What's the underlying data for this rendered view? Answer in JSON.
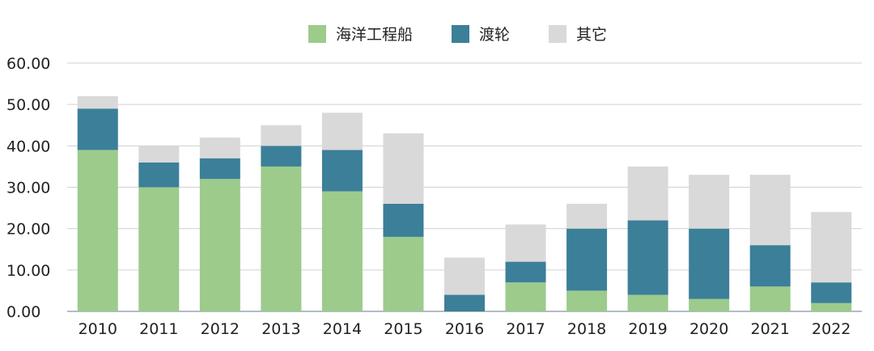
{
  "chart_data": {
    "type": "bar",
    "stacked": true,
    "categories": [
      "2010",
      "2011",
      "2012",
      "2013",
      "2014",
      "2015",
      "2016",
      "2017",
      "2018",
      "2019",
      "2020",
      "2021",
      "2022"
    ],
    "series": [
      {
        "name": "海洋工程船",
        "color": "#9ccb8c",
        "values": [
          39,
          30,
          32,
          35,
          29,
          18,
          0,
          7,
          5,
          4,
          3,
          6,
          2
        ]
      },
      {
        "name": "渡轮",
        "color": "#3c7f99",
        "values": [
          10,
          6,
          5,
          5,
          10,
          8,
          4,
          5,
          15,
          18,
          17,
          10,
          5
        ]
      },
      {
        "name": "其它",
        "color": "#d9d9d9",
        "values": [
          3,
          4,
          5,
          5,
          9,
          17,
          9,
          9,
          6,
          13,
          13,
          17,
          17
        ]
      }
    ],
    "ylim": [
      0,
      60
    ],
    "yticks": [
      "0.00",
      "10.00",
      "20.00",
      "30.00",
      "40.00",
      "50.00",
      "60.00"
    ],
    "grid": true,
    "legend_position": "top-center"
  }
}
